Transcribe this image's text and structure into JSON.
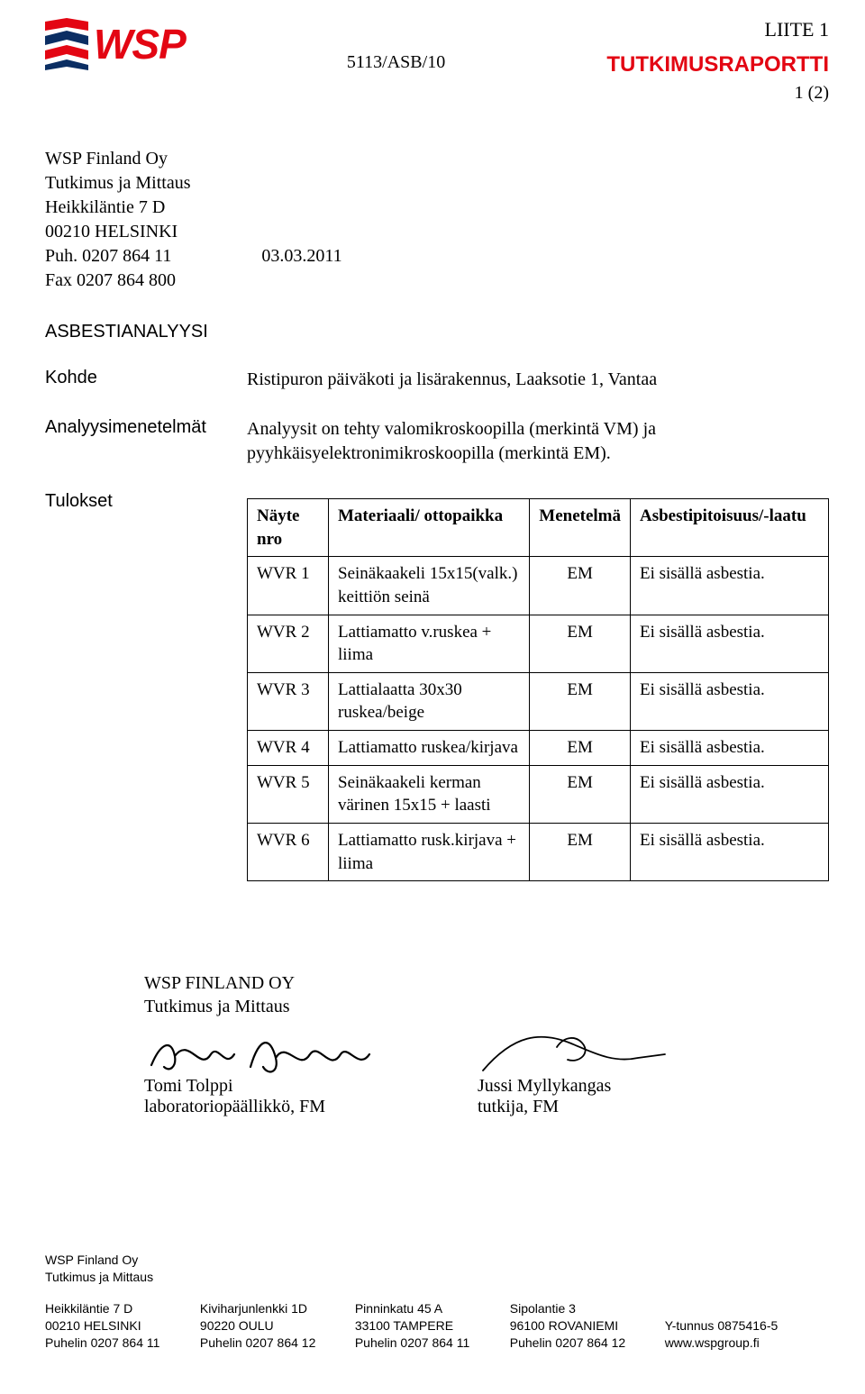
{
  "colors": {
    "brand_red": "#e30613",
    "text": "#000000",
    "bg": "#ffffff",
    "table_border": "#000000"
  },
  "header": {
    "logo_text": "WSP",
    "doc_ref": "5113/ASB/10",
    "liite": "LIITE 1",
    "report_title": "TUTKIMUSRAPORTTI",
    "page": "1 (2)"
  },
  "recipient": {
    "company": "WSP Finland Oy",
    "dept": "Tutkimus ja Mittaus",
    "street": "Heikkiläntie 7 D",
    "city": "00210 HELSINKI",
    "phone_label": "Puh. 0207 864 11",
    "date": "03.03.2011",
    "fax": "Fax 0207 864 800"
  },
  "analysis": {
    "section_title": "ASBESTIANALYYSI",
    "labels": {
      "kohde": "Kohde",
      "methods": "Analyysimenetelmät",
      "results": "Tulokset"
    },
    "kohde_value": "Ristipuron päiväkoti ja lisärakennus, Laaksotie 1, Vantaa",
    "methods_value": "Analyysit on tehty valomikroskoopilla (merkintä VM) ja pyyhkäisyelektronimikroskoopilla (merkintä EM)."
  },
  "table": {
    "headers": {
      "nro": "Näyte nro",
      "material": "Materiaali/ ottopaikka",
      "method": "Menetelmä",
      "result": "Asbestipitoisuus/-laatu"
    },
    "rows": [
      {
        "nro": "WVR 1",
        "material": "Seinäkaakeli 15x15(valk.) keittiön seinä",
        "method": "EM",
        "result": "Ei sisällä asbestia."
      },
      {
        "nro": "WVR 2",
        "material": "Lattiamatto v.ruskea + liima",
        "method": "EM",
        "result": "Ei sisällä asbestia."
      },
      {
        "nro": "WVR 3",
        "material": "Lattialaatta 30x30 ruskea/beige",
        "method": "EM",
        "result": "Ei sisällä asbestia."
      },
      {
        "nro": "WVR 4",
        "material": "Lattiamatto ruskea/kirjava",
        "method": "EM",
        "result": "Ei sisällä asbestia."
      },
      {
        "nro": "WVR 5",
        "material": "Seinäkaakeli kerman värinen 15x15 + laasti",
        "method": "EM",
        "result": "Ei sisällä asbestia."
      },
      {
        "nro": "WVR 6",
        "material": "Lattiamatto rusk.kirjava + liima",
        "method": "EM",
        "result": "Ei sisällä asbestia."
      }
    ]
  },
  "signatures": {
    "org_line1": "WSP FINLAND OY",
    "org_line2": "Tutkimus ja Mittaus",
    "left": {
      "name": "Tomi Tolppi",
      "title": "laboratoriopäällikkö, FM"
    },
    "right": {
      "name": "Jussi Myllykangas",
      "title": "tutkija, FM"
    }
  },
  "footer": {
    "company": "WSP Finland Oy",
    "dept": "Tutkimus ja Mittaus",
    "cols": [
      {
        "l1": "Heikkiläntie 7 D",
        "l2": "00210 HELSINKI",
        "l3": "Puhelin 0207 864 11"
      },
      {
        "l1": "Kiviharjunlenkki 1D",
        "l2": "90220 OULU",
        "l3": "Puhelin 0207 864 12"
      },
      {
        "l1": "Pinninkatu 45 A",
        "l2": "33100 TAMPERE",
        "l3": "Puhelin 0207 864 11"
      },
      {
        "l1": "Sipolantie 3",
        "l2": "96100 ROVANIEMI",
        "l3": "Puhelin 0207 864 12"
      },
      {
        "l1": "",
        "l2": "Y-tunnus 0875416-5",
        "l3": "www.wspgroup.fi"
      }
    ]
  }
}
